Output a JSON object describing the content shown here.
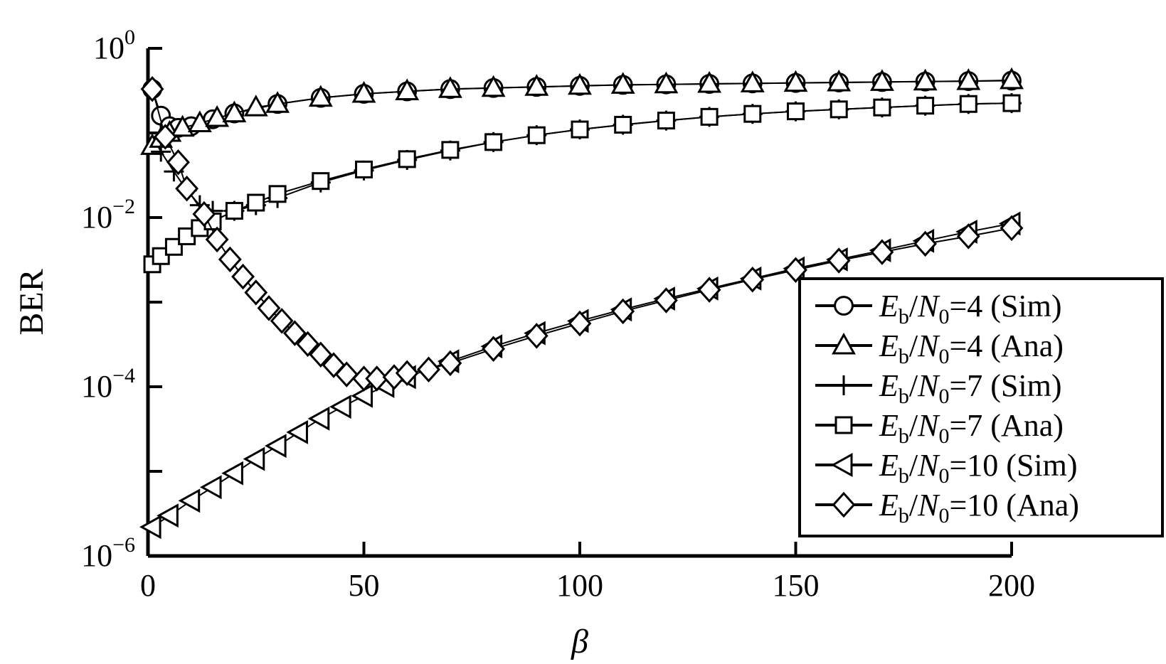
{
  "chart_data": {
    "type": "scatter",
    "title": "",
    "xlabel": "β",
    "ylabel": "BER",
    "xlim": [
      0,
      200
    ],
    "ylim": [
      1e-06,
      1
    ],
    "yscale": "log",
    "x_ticks": [
      "0",
      "50",
      "100",
      "150",
      "200"
    ],
    "y_ticks": [
      {
        "base": "10",
        "exp": "0"
      },
      {
        "base": "10",
        "exp": "−2"
      },
      {
        "base": "10",
        "exp": "−4"
      },
      {
        "base": "10",
        "exp": "−6"
      }
    ],
    "legend_position": "lower-right",
    "series": [
      {
        "marker": "circle",
        "ratio": "4",
        "kind": "Sim",
        "x": [
          1,
          3,
          5,
          7,
          10,
          15,
          20,
          30,
          40,
          50,
          60,
          70,
          80,
          90,
          100,
          110,
          120,
          130,
          140,
          150,
          160,
          170,
          180,
          190,
          200
        ],
        "y": [
          0.33,
          0.16,
          0.12,
          0.115,
          0.12,
          0.145,
          0.17,
          0.22,
          0.26,
          0.29,
          0.31,
          0.33,
          0.34,
          0.35,
          0.36,
          0.37,
          0.375,
          0.38,
          0.385,
          0.39,
          0.395,
          0.4,
          0.405,
          0.41,
          0.415
        ]
      },
      {
        "marker": "triangle-up",
        "ratio": "4",
        "kind": "Ana",
        "x": [
          1,
          3,
          5,
          8,
          12,
          16,
          20,
          25,
          30,
          40,
          50,
          60,
          70,
          80,
          90,
          100,
          110,
          120,
          130,
          140,
          150,
          160,
          170,
          180,
          190,
          200
        ],
        "y": [
          0.07,
          0.085,
          0.1,
          0.115,
          0.13,
          0.15,
          0.17,
          0.2,
          0.22,
          0.26,
          0.29,
          0.31,
          0.33,
          0.34,
          0.35,
          0.36,
          0.37,
          0.375,
          0.38,
          0.385,
          0.39,
          0.395,
          0.4,
          0.405,
          0.41,
          0.42
        ]
      },
      {
        "marker": "plus",
        "ratio": "7",
        "kind": "Sim",
        "x": [
          3,
          6,
          9,
          12,
          15,
          20,
          25,
          30,
          40,
          50,
          60,
          70,
          80,
          90,
          100,
          110,
          120,
          130,
          140,
          150,
          160,
          170,
          180,
          190,
          200
        ],
        "y": [
          0.06,
          0.035,
          0.021,
          0.014,
          0.012,
          0.012,
          0.014,
          0.017,
          0.026,
          0.036,
          0.048,
          0.062,
          0.078,
          0.094,
          0.11,
          0.125,
          0.14,
          0.155,
          0.168,
          0.18,
          0.19,
          0.2,
          0.21,
          0.22,
          0.225
        ]
      },
      {
        "marker": "square",
        "ratio": "7",
        "kind": "Ana",
        "x": [
          1,
          3,
          6,
          9,
          12,
          15,
          20,
          25,
          30,
          40,
          50,
          60,
          70,
          80,
          90,
          100,
          110,
          120,
          130,
          140,
          150,
          160,
          170,
          180,
          190,
          200
        ],
        "y": [
          0.0028,
          0.0035,
          0.0045,
          0.006,
          0.0075,
          0.009,
          0.012,
          0.015,
          0.019,
          0.027,
          0.037,
          0.049,
          0.063,
          0.078,
          0.094,
          0.11,
          0.125,
          0.14,
          0.155,
          0.168,
          0.18,
          0.19,
          0.2,
          0.21,
          0.22,
          0.225
        ]
      },
      {
        "marker": "triangle-left",
        "ratio": "10",
        "kind": "Sim",
        "x": [
          1,
          5,
          10,
          15,
          20,
          25,
          30,
          35,
          40,
          45,
          50,
          55,
          60,
          70,
          80,
          90,
          100,
          110,
          120,
          130,
          140,
          150,
          160,
          170,
          180,
          190,
          200
        ],
        "y": [
          2.2e-06,
          3e-06,
          4.5e-06,
          6.5e-06,
          9.5e-06,
          1.4e-05,
          2e-05,
          2.9e-05,
          4.2e-05,
          5.8e-05,
          7.8e-05,
          0.000102,
          0.00013,
          0.0002,
          0.0003,
          0.00043,
          0.0006,
          0.00082,
          0.0011,
          0.00145,
          0.0019,
          0.0025,
          0.0032,
          0.0041,
          0.0053,
          0.0068,
          0.0085
        ]
      },
      {
        "marker": "diamond",
        "ratio": "10",
        "kind": "Ana",
        "x": [
          1,
          4,
          7,
          9,
          13,
          16,
          19,
          22,
          25,
          28,
          31,
          34,
          37,
          40,
          43,
          46,
          50,
          53,
          57,
          60,
          65,
          70,
          80,
          90,
          100,
          110,
          120,
          130,
          140,
          150,
          160,
          170,
          180,
          190,
          200
        ],
        "y": [
          0.33,
          0.09,
          0.045,
          0.022,
          0.011,
          0.0055,
          0.0032,
          0.002,
          0.0013,
          0.00085,
          0.0006,
          0.00043,
          0.00032,
          0.00024,
          0.00018,
          0.00014,
          0.000125,
          0.000125,
          0.00013,
          0.000145,
          0.00016,
          0.00019,
          0.00028,
          0.0004,
          0.00056,
          0.00078,
          0.00105,
          0.0014,
          0.00185,
          0.0024,
          0.0031,
          0.0039,
          0.0049,
          0.006,
          0.0075
        ]
      }
    ]
  },
  "legend": {
    "e_main": "E",
    "e_sub": "b",
    "n_main": "N",
    "n_sub": "0",
    "eq": "="
  }
}
